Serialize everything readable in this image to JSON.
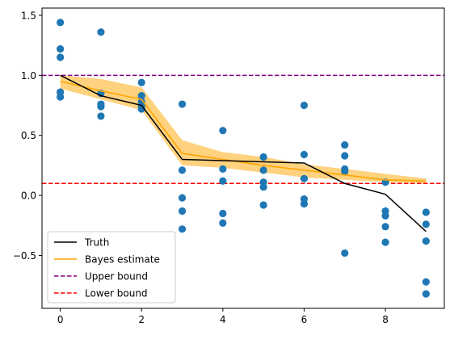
{
  "chart_data": {
    "type": "line",
    "title": "",
    "xlabel": "",
    "ylabel": "",
    "xlim": [
      -0.45,
      9.45
    ],
    "ylim": [
      -0.94,
      1.56
    ],
    "xticks": [
      0,
      2,
      4,
      6,
      8
    ],
    "yticks": [
      -0.5,
      0.0,
      0.5,
      1.0,
      1.5
    ],
    "xtick_labels": [
      "0",
      "2",
      "4",
      "6",
      "8"
    ],
    "ytick_labels": [
      "−0.5",
      "0.0",
      "0.5",
      "1.0",
      "1.5"
    ],
    "grid": false,
    "legend_position": "lower-left",
    "colors": {
      "scatter": "#1f77b4",
      "truth": "#000000",
      "bayes": "#ffa500",
      "band": "#ffa500",
      "upper": "#800080",
      "lower": "#ff0000"
    },
    "scatter": {
      "x": [
        0,
        0,
        0,
        0,
        0,
        1,
        1,
        1,
        1,
        1,
        2,
        2,
        2,
        2,
        2,
        3,
        3,
        3,
        3,
        3,
        4,
        4,
        4,
        4,
        4,
        5,
        5,
        5,
        5,
        5,
        6,
        6,
        6,
        6,
        6,
        7,
        7,
        7,
        7,
        7,
        8,
        8,
        8,
        8,
        8,
        9,
        9,
        9,
        9,
        9
      ],
      "y": [
        1.44,
        1.22,
        1.15,
        0.86,
        0.82,
        1.36,
        0.85,
        0.76,
        0.74,
        0.66,
        0.94,
        0.83,
        0.78,
        0.74,
        0.72,
        0.76,
        0.21,
        -0.02,
        -0.13,
        -0.28,
        0.54,
        0.22,
        0.12,
        -0.15,
        -0.23,
        0.32,
        0.21,
        0.11,
        0.07,
        -0.08,
        0.75,
        0.34,
        0.14,
        -0.03,
        -0.07,
        0.42,
        0.33,
        0.22,
        0.2,
        -0.48,
        0.11,
        -0.13,
        -0.17,
        -0.26,
        -0.39,
        -0.14,
        -0.24,
        -0.38,
        -0.72,
        -0.82
      ]
    },
    "series": [
      {
        "name": "Truth",
        "x": [
          0,
          1,
          2,
          3,
          4,
          5,
          6,
          7,
          8,
          9
        ],
        "values": [
          1.0,
          0.83,
          0.75,
          0.3,
          0.29,
          0.28,
          0.27,
          0.1,
          0.01,
          -0.3
        ]
      },
      {
        "name": "Bayes estimate",
        "x": [
          0,
          1,
          2,
          3,
          4,
          5,
          6,
          7,
          8,
          9
        ],
        "values": [
          0.95,
          0.87,
          0.8,
          0.35,
          0.3,
          0.25,
          0.21,
          0.17,
          0.13,
          0.12
        ],
        "band_upper": [
          1.0,
          0.97,
          0.9,
          0.46,
          0.36,
          0.32,
          0.26,
          0.22,
          0.18,
          0.14
        ],
        "band_lower": [
          0.89,
          0.8,
          0.71,
          0.25,
          0.23,
          0.19,
          0.15,
          0.13,
          0.11,
          0.1
        ]
      },
      {
        "name": "Upper bound",
        "hline": 1.0
      },
      {
        "name": "Lower bound",
        "hline": 0.1
      }
    ],
    "legend": [
      "Truth",
      "Bayes estimate",
      "Upper bound",
      "Lower bound"
    ]
  }
}
